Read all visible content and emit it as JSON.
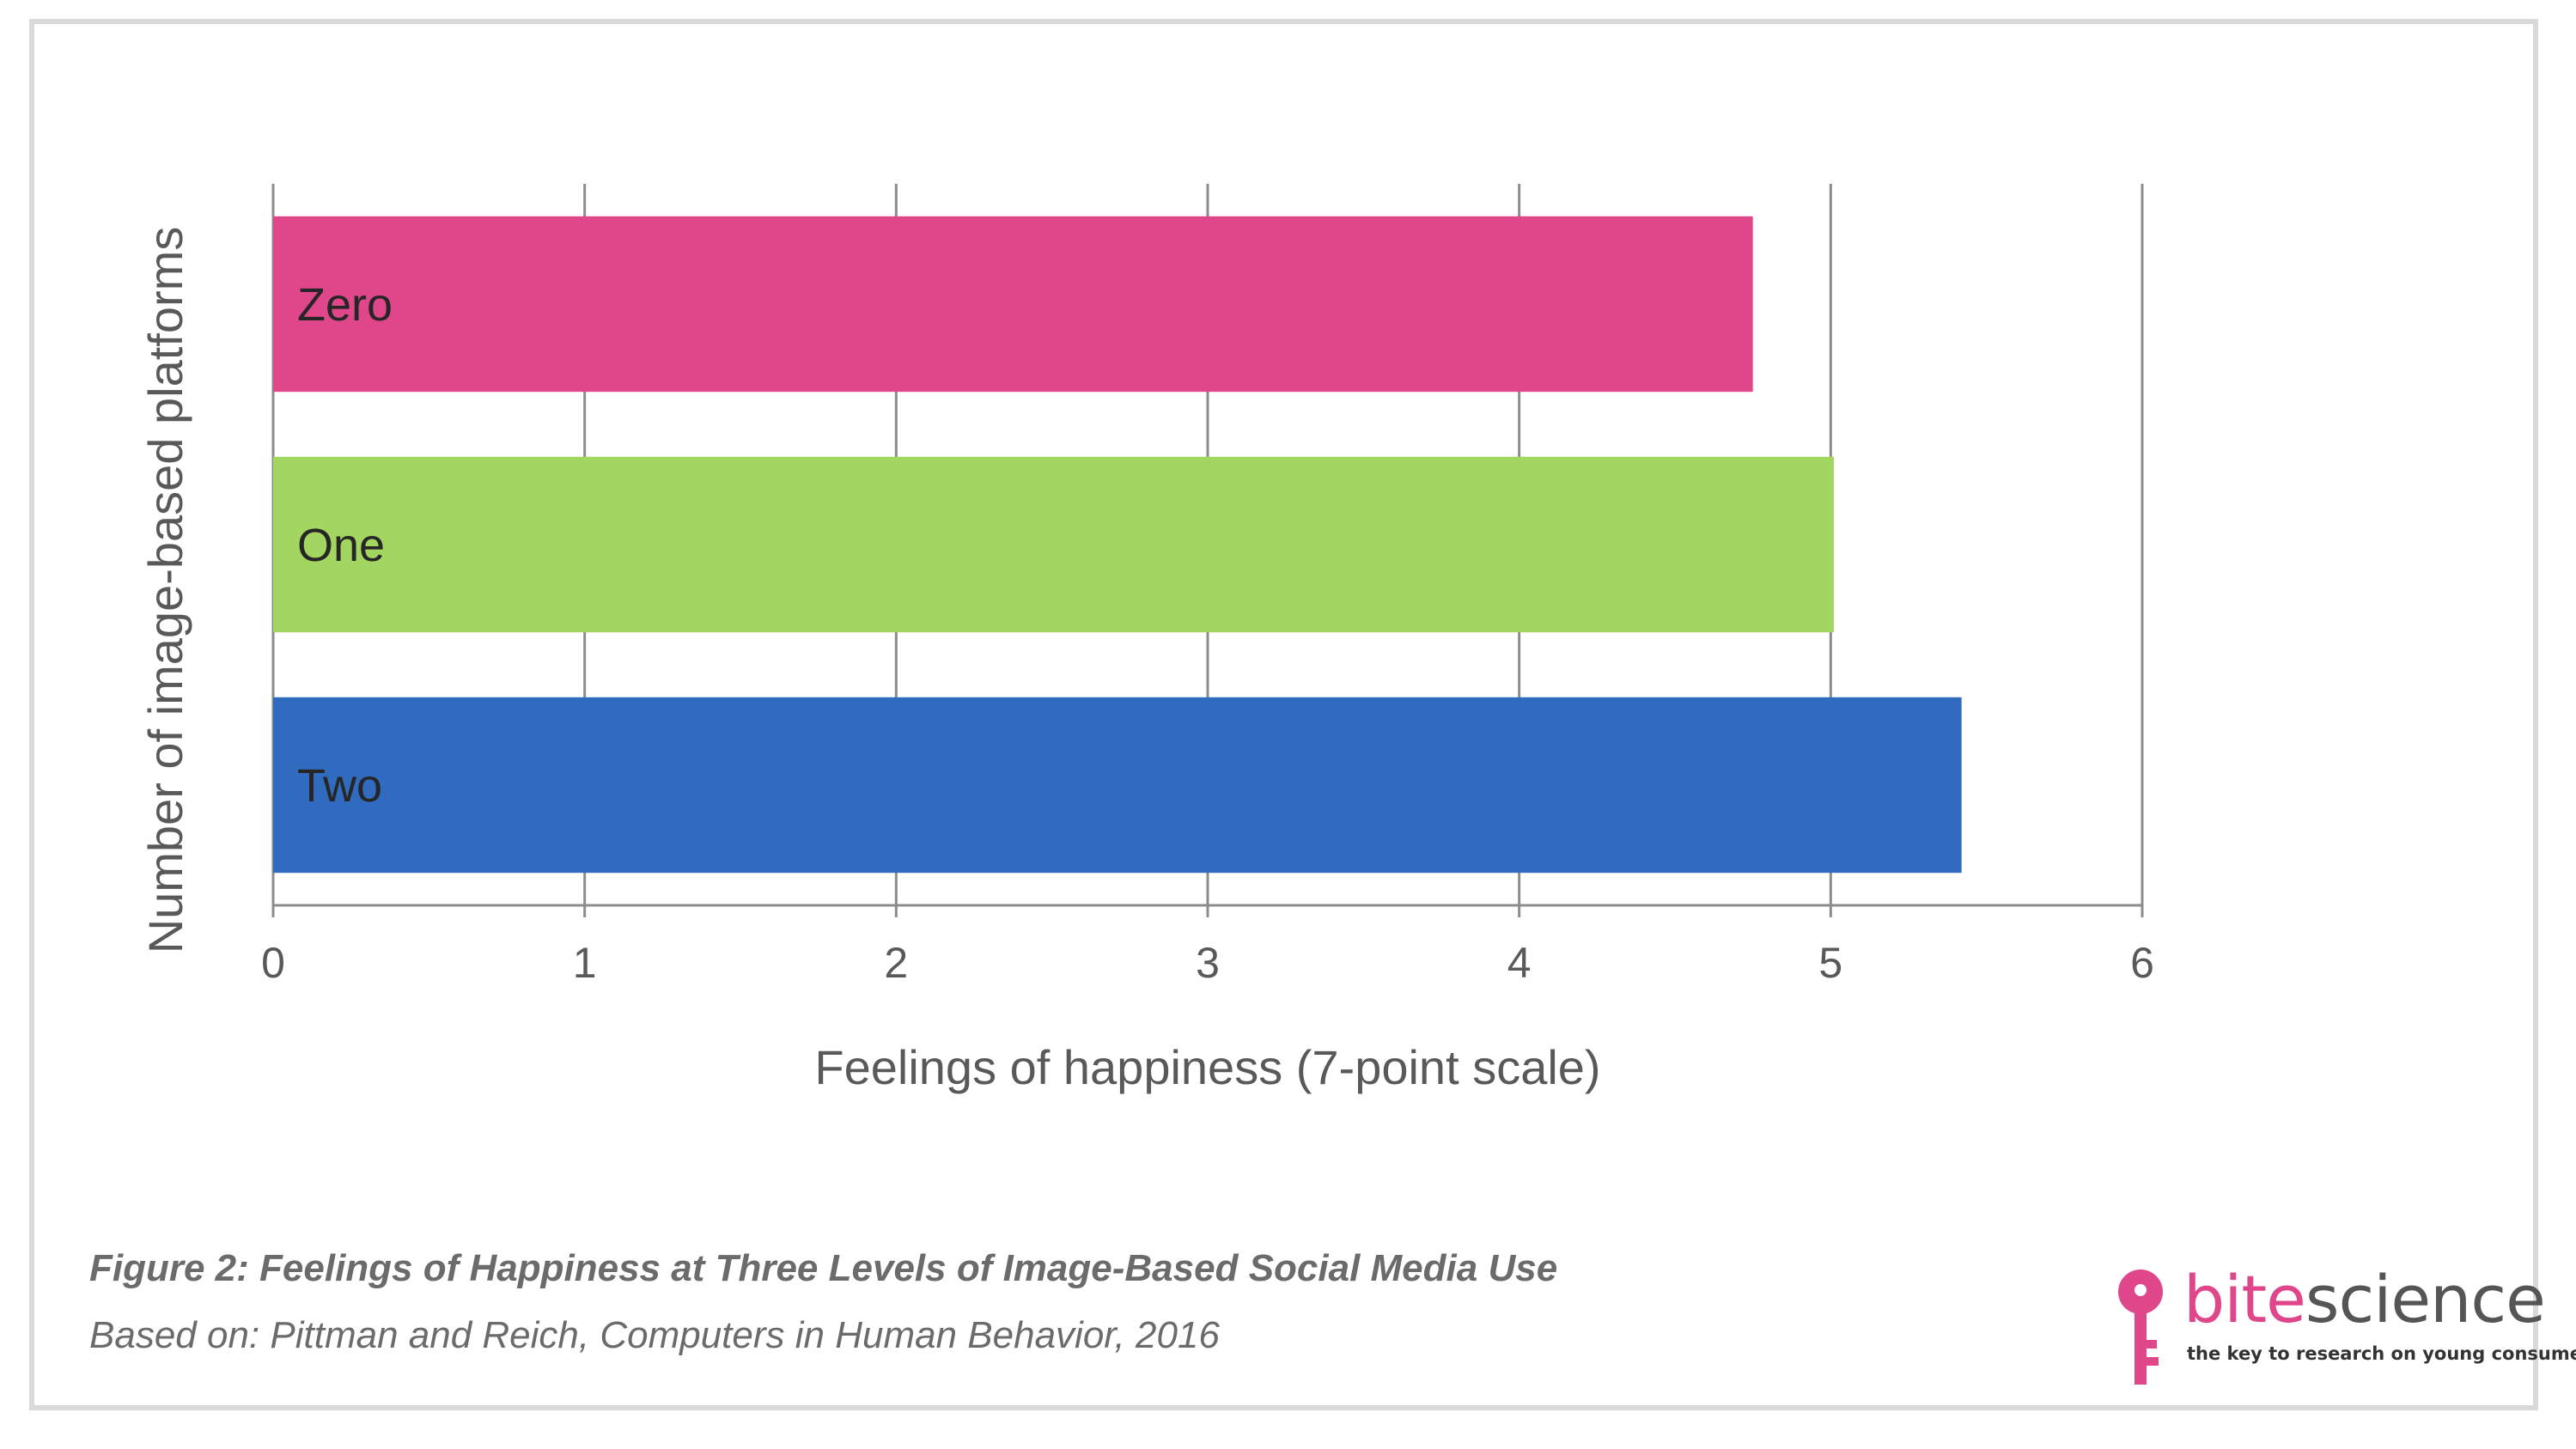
{
  "chart_data": {
    "type": "bar",
    "orientation": "horizontal",
    "categories": [
      "Zero",
      "One",
      "Two"
    ],
    "values": [
      4.75,
      5.01,
      5.42
    ],
    "colors": [
      "#e0468a",
      "#a3d561",
      "#316bbf"
    ],
    "xlabel": "Feelings of happiness (7-point scale)",
    "ylabel": "Number of image-based platforms",
    "xlim": [
      0,
      6
    ],
    "xticks": [
      "0",
      "1",
      "2",
      "3",
      "4",
      "5",
      "6"
    ],
    "grid": true
  },
  "caption": {
    "title": "Figure 2: Feelings of Happiness at Three Levels of Image-Based Social Media Use",
    "source": "Based on: Pittman and Reich, Computers in Human Behavior, 2016"
  },
  "logo": {
    "word_part1": "bite",
    "word_part2": "science",
    "tagline": "the key to research on young consumers",
    "icon": "key-icon",
    "color": "#e0468a"
  }
}
